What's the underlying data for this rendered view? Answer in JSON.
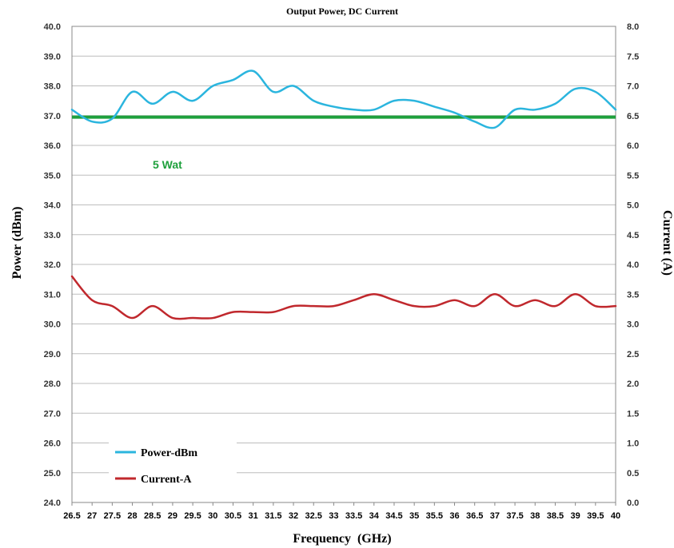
{
  "chart_data": {
    "type": "line",
    "title": "Output Power, DC Current",
    "xlabel": "Frequency  (GHz)",
    "ylabel_left": "Power (dBm)",
    "ylabel_right": "Current  (A)",
    "grid": true,
    "legend_position": "bottom-left",
    "x": [
      26.5,
      27,
      27.5,
      28,
      28.5,
      29,
      29.5,
      30,
      30.5,
      31,
      31.5,
      32,
      32.5,
      33,
      33.5,
      34,
      34.5,
      35,
      35.5,
      36,
      36.5,
      37,
      37.5,
      38,
      38.5,
      39,
      39.5,
      40
    ],
    "x_tick_labels": [
      "26.5",
      "27",
      "27.5",
      "28",
      "28.5",
      "29",
      "29.5",
      "30",
      "30.5",
      "31",
      "31.5",
      "32",
      "32.5",
      "33",
      "33.5",
      "34",
      "34.5",
      "35",
      "35.5",
      "36",
      "36.5",
      "37",
      "37.5",
      "38",
      "38.5",
      "39",
      "39.5",
      "40"
    ],
    "y_left": {
      "range": [
        24.0,
        40.0
      ],
      "tick_labels": [
        "24.0",
        "25.0",
        "26.0",
        "27.0",
        "28.0",
        "29.0",
        "30.0",
        "31.0",
        "32.0",
        "33.0",
        "34.0",
        "35.0",
        "36.0",
        "37.0",
        "38.0",
        "39.0",
        "40.0"
      ]
    },
    "y_right": {
      "range": [
        0.0,
        8.0
      ],
      "tick_labels": [
        "0.0",
        "0.5",
        "1.0",
        "1.5",
        "2.0",
        "2.5",
        "3.0",
        "3.5",
        "4.0",
        "4.5",
        "5.0",
        "5.5",
        "6.0",
        "6.5",
        "7.0",
        "7.5",
        "8.0"
      ]
    },
    "series": [
      {
        "name": "Power-dBm",
        "axis": "left",
        "color": "#2bb5de",
        "values": [
          37.2,
          36.8,
          36.9,
          37.8,
          37.4,
          37.8,
          37.5,
          38.0,
          38.2,
          38.5,
          37.8,
          38.0,
          37.5,
          37.3,
          37.2,
          37.2,
          37.5,
          37.5,
          37.3,
          37.1,
          36.8,
          36.6,
          37.2,
          37.2,
          37.4,
          37.9,
          37.8,
          37.2
        ]
      },
      {
        "name": "Current-A",
        "axis": "right",
        "color": "#c0282d",
        "values": [
          3.8,
          3.4,
          3.3,
          3.1,
          3.3,
          3.1,
          3.1,
          3.1,
          3.2,
          3.2,
          3.2,
          3.3,
          3.3,
          3.3,
          3.4,
          3.5,
          3.4,
          3.3,
          3.3,
          3.4,
          3.3,
          3.5,
          3.3,
          3.4,
          3.3,
          3.5,
          3.3,
          3.3
        ]
      }
    ],
    "reference_line": {
      "axis": "left",
      "value": 36.95,
      "color": "#1ea03c",
      "label": "5 Wat"
    }
  }
}
